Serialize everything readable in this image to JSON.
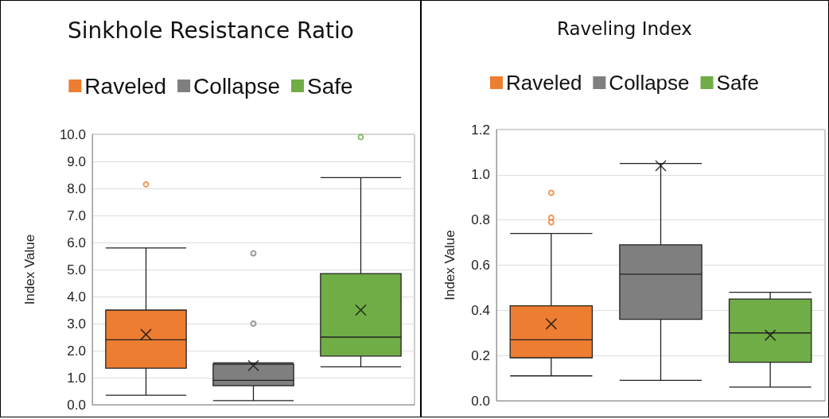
{
  "chart_data": [
    {
      "type": "box",
      "title": "Sinkhole Resistance Ratio",
      "ylabel": "Index Value",
      "categories": [
        null
      ],
      "legend": "top",
      "grid": "y",
      "ylim": [
        0,
        10
      ],
      "yticks": [
        {
          "value": 0,
          "label": "0.0"
        },
        {
          "value": 1,
          "label": "1.0"
        },
        {
          "value": 2,
          "label": "2.0"
        },
        {
          "value": 3,
          "label": "3.0"
        },
        {
          "value": 4,
          "label": "4.0"
        },
        {
          "value": 5,
          "label": "5.0"
        },
        {
          "value": 6,
          "label": "6.0"
        },
        {
          "value": 7,
          "label": "7.0"
        },
        {
          "value": 8,
          "label": "8.0"
        },
        {
          "value": 9,
          "label": "9.0"
        },
        {
          "value": 10,
          "label": "10.0"
        }
      ],
      "series": [
        {
          "name": "Raveled",
          "color": "#ed7d31",
          "boxes": [
            {
              "low": 0.35,
              "q1": 1.35,
              "median": 2.4,
              "q3": 3.5,
              "high": 5.8,
              "mean": 2.6,
              "outliers": [
                8.15
              ]
            }
          ]
        },
        {
          "name": "Collapse",
          "color": "#7f7f7f",
          "boxes": [
            {
              "low": 0.15,
              "q1": 0.7,
              "median": 0.9,
              "q3": 1.5,
              "high": 1.55,
              "mean": 1.45,
              "outliers": [
                5.6,
                3.0
              ]
            }
          ]
        },
        {
          "name": "Safe",
          "color": "#70ad47",
          "boxes": [
            {
              "low": 1.4,
              "q1": 1.8,
              "median": 2.5,
              "q3": 4.85,
              "high": 8.4,
              "mean": 3.5,
              "outliers": [
                9.9
              ]
            }
          ]
        }
      ]
    },
    {
      "type": "box",
      "title": "Raveling Index",
      "ylabel": "Index Value",
      "categories": [
        null
      ],
      "legend": "top",
      "grid": "y",
      "ylim": [
        0,
        1.2
      ],
      "yticks": [
        {
          "value": 0,
          "label": "0.0"
        },
        {
          "value": 0.2,
          "label": "0.2"
        },
        {
          "value": 0.4,
          "label": "0.4"
        },
        {
          "value": 0.6,
          "label": "0.6"
        },
        {
          "value": 0.8,
          "label": "0.8"
        },
        {
          "value": 1,
          "label": "1.0"
        },
        {
          "value": 1.2,
          "label": "1.2"
        }
      ],
      "series": [
        {
          "name": "Raveled",
          "color": "#ed7d31",
          "boxes": [
            {
              "low": 0.11,
              "q1": 0.19,
              "median": 0.27,
              "q3": 0.42,
              "high": 0.74,
              "mean": 0.34,
              "outliers": [
                0.92,
                0.81,
                0.79
              ]
            }
          ]
        },
        {
          "name": "Collapse",
          "color": "#7f7f7f",
          "boxes": [
            {
              "low": 0.09,
              "q1": 0.36,
              "median": 0.56,
              "q3": 0.69,
              "high": 1.05,
              "mean": 1.04
            }
          ]
        },
        {
          "name": "Safe",
          "color": "#70ad47",
          "boxes": [
            {
              "low": 0.06,
              "q1": 0.17,
              "median": 0.3,
              "q3": 0.45,
              "high": 0.48,
              "mean": 0.29
            }
          ]
        }
      ]
    }
  ]
}
